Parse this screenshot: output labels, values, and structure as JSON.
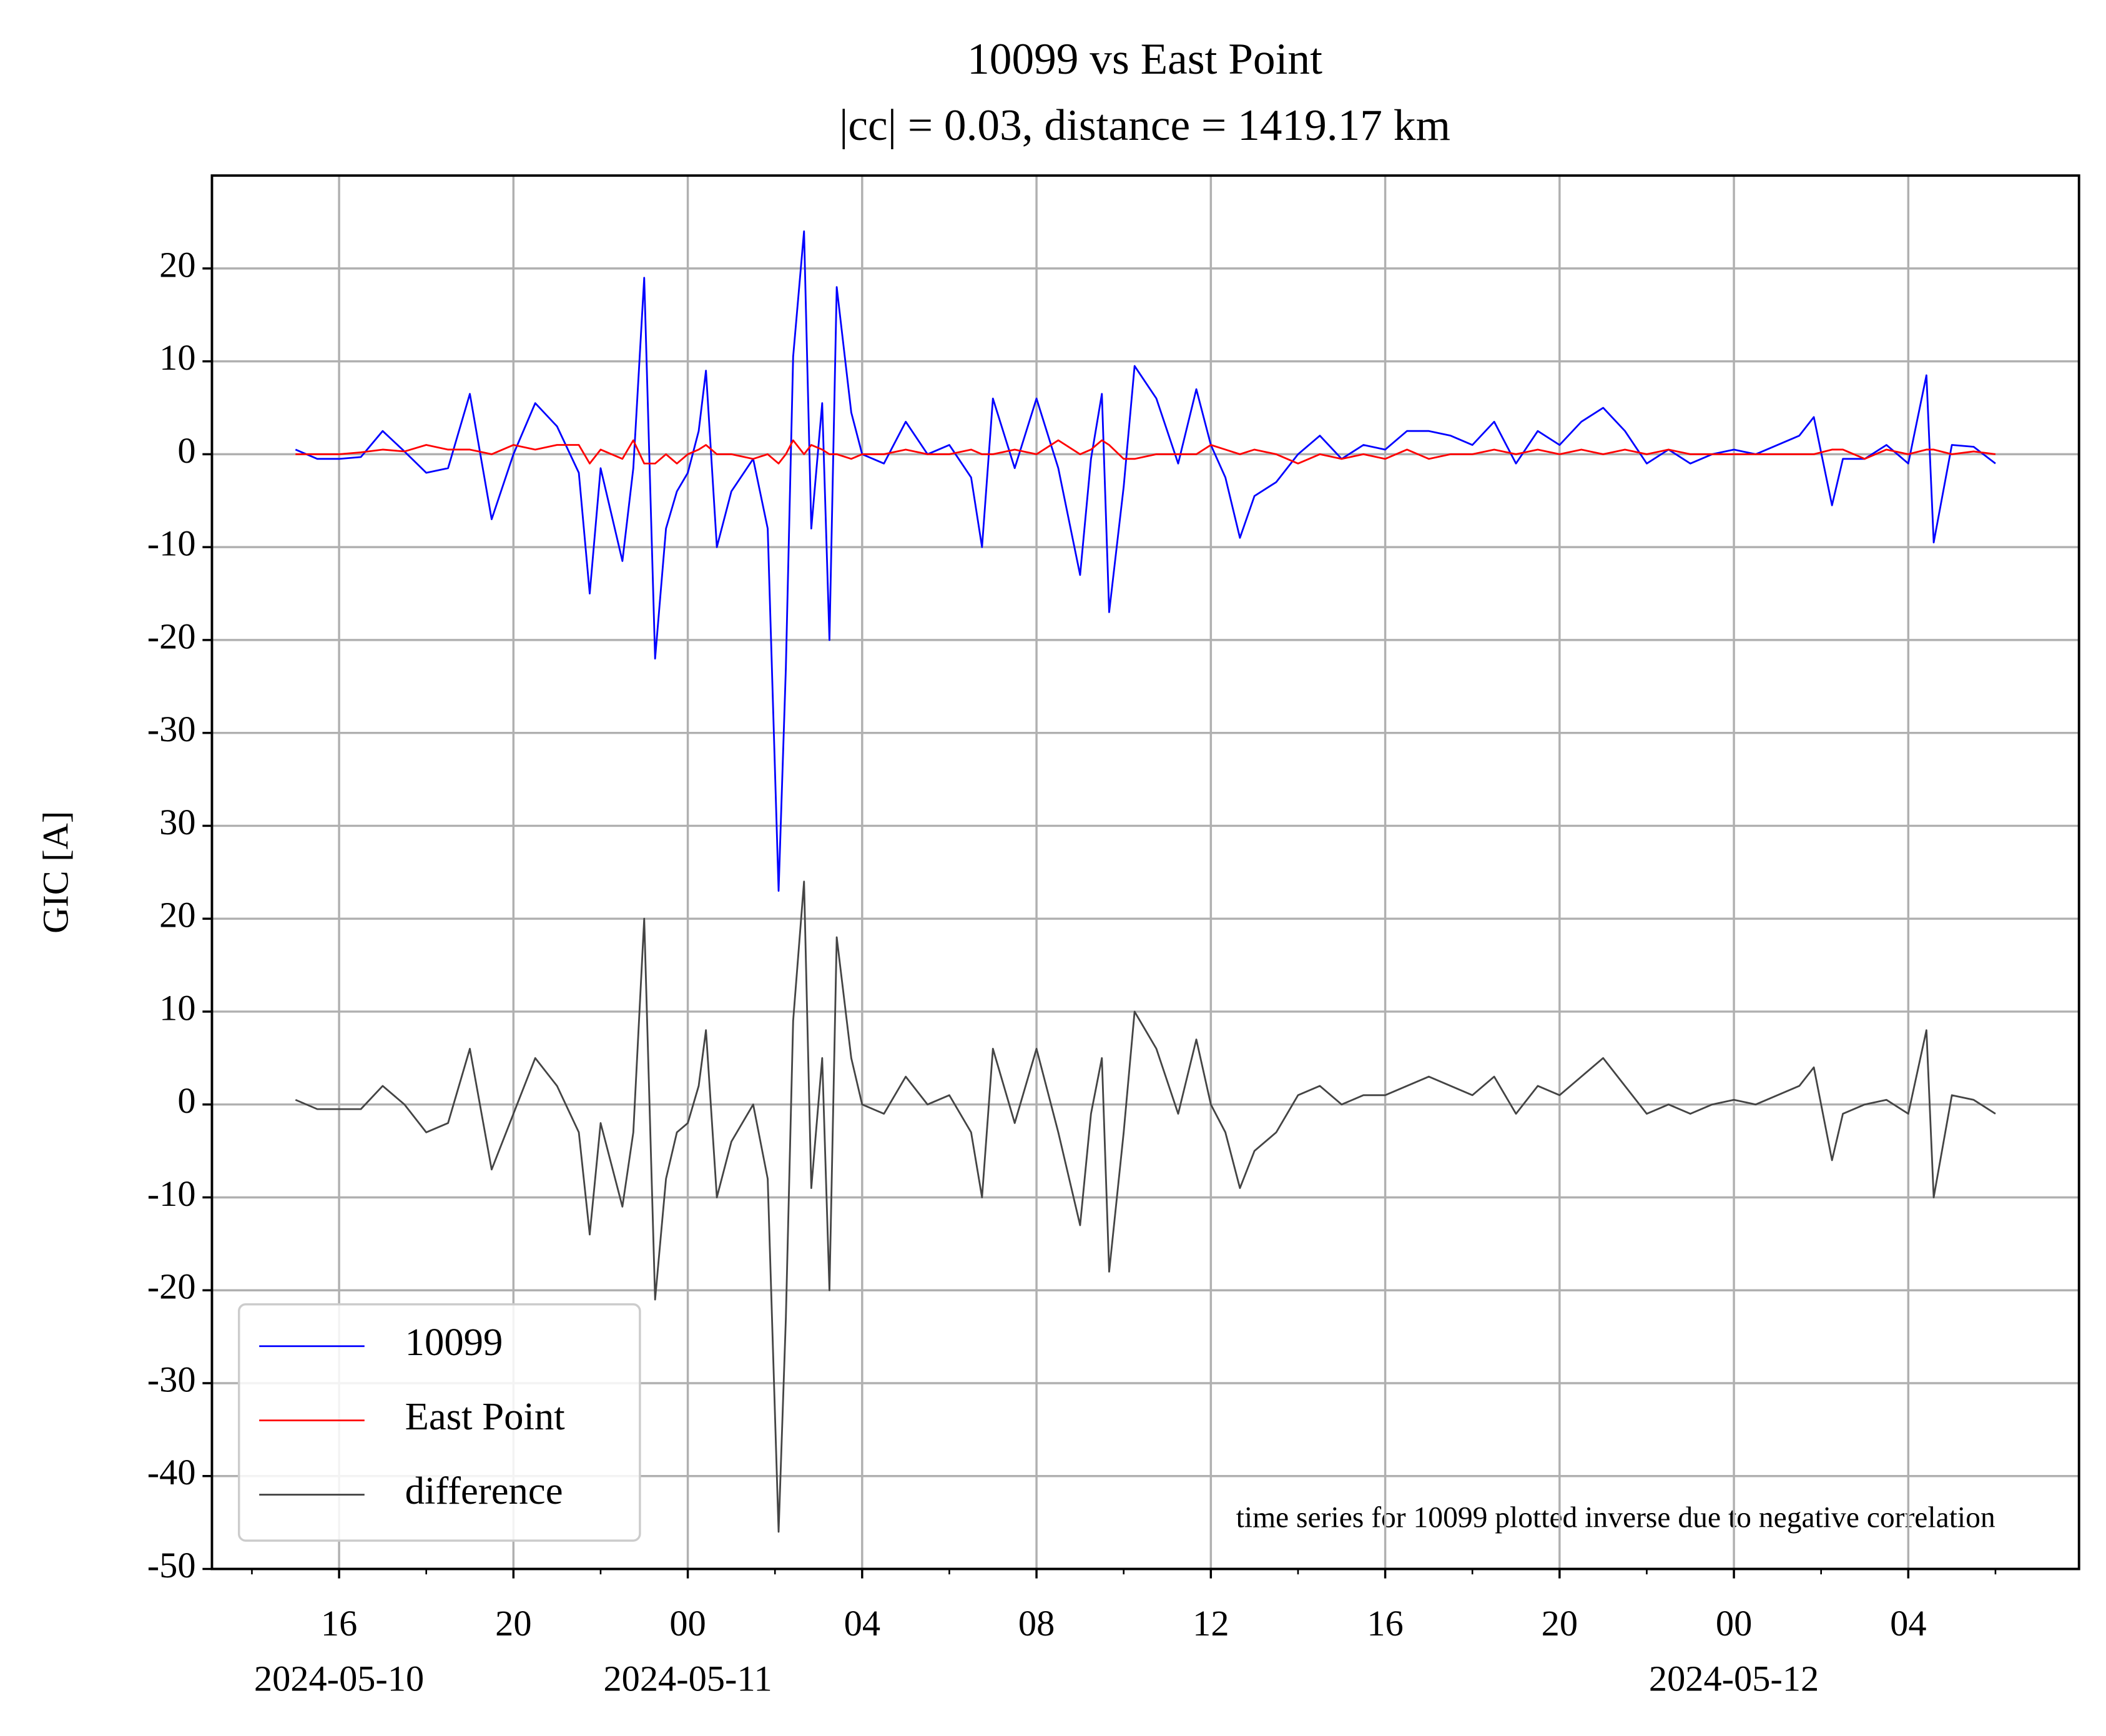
{
  "chart_data": {
    "type": "line",
    "title": "10099 vs East Point",
    "subtitle": "|cc| = 0.03, distance = 1419.17 km",
    "y_label": "GIC [A]",
    "annotation": "time series for 10099 plotted inverse due to negative correlation",
    "x": [
      "2024-05-10 15:00",
      "2024-05-10 15:30",
      "2024-05-10 16:00",
      "2024-05-10 16:30",
      "2024-05-10 17:00",
      "2024-05-10 17:30",
      "2024-05-10 18:00",
      "2024-05-10 18:30",
      "2024-05-10 19:00",
      "2024-05-10 19:30",
      "2024-05-10 20:00",
      "2024-05-10 20:30",
      "2024-05-10 21:00",
      "2024-05-10 21:30",
      "2024-05-10 21:45",
      "2024-05-10 22:00",
      "2024-05-10 22:30",
      "2024-05-10 22:45",
      "2024-05-10 23:00",
      "2024-05-10 23:15",
      "2024-05-10 23:30",
      "2024-05-10 23:45",
      "2024-05-11 00:00",
      "2024-05-11 00:15",
      "2024-05-11 00:25",
      "2024-05-11 00:40",
      "2024-05-11 01:00",
      "2024-05-11 01:30",
      "2024-05-11 01:50",
      "2024-05-11 02:05",
      "2024-05-11 02:15",
      "2024-05-11 02:25",
      "2024-05-11 02:40",
      "2024-05-11 02:50",
      "2024-05-11 03:05",
      "2024-05-11 03:15",
      "2024-05-11 03:25",
      "2024-05-11 03:45",
      "2024-05-11 04:00",
      "2024-05-11 04:30",
      "2024-05-11 05:00",
      "2024-05-11 05:30",
      "2024-05-11 06:00",
      "2024-05-11 06:30",
      "2024-05-11 06:45",
      "2024-05-11 07:00",
      "2024-05-11 07:30",
      "2024-05-11 08:00",
      "2024-05-11 08:30",
      "2024-05-11 09:00",
      "2024-05-11 09:15",
      "2024-05-11 09:30",
      "2024-05-11 09:40",
      "2024-05-11 10:00",
      "2024-05-11 10:15",
      "2024-05-11 10:45",
      "2024-05-11 11:15",
      "2024-05-11 11:40",
      "2024-05-11 12:00",
      "2024-05-11 12:20",
      "2024-05-11 12:40",
      "2024-05-11 13:00",
      "2024-05-11 13:30",
      "2024-05-11 14:00",
      "2024-05-11 14:30",
      "2024-05-11 15:00",
      "2024-05-11 15:30",
      "2024-05-11 16:00",
      "2024-05-11 16:30",
      "2024-05-11 17:00",
      "2024-05-11 17:30",
      "2024-05-11 18:00",
      "2024-05-11 18:30",
      "2024-05-11 19:00",
      "2024-05-11 19:30",
      "2024-05-11 20:00",
      "2024-05-11 20:30",
      "2024-05-11 21:00",
      "2024-05-11 21:30",
      "2024-05-11 22:00",
      "2024-05-11 22:30",
      "2024-05-11 23:00",
      "2024-05-11 23:30",
      "2024-05-12 00:00",
      "2024-05-12 00:30",
      "2024-05-12 01:00",
      "2024-05-12 01:30",
      "2024-05-12 01:50",
      "2024-05-12 02:15",
      "2024-05-12 02:30",
      "2024-05-12 03:00",
      "2024-05-12 03:30",
      "2024-05-12 04:00",
      "2024-05-12 04:25",
      "2024-05-12 04:35",
      "2024-05-12 05:00",
      "2024-05-12 05:30",
      "2024-05-12 06:00"
    ],
    "series": [
      {
        "name": "10099",
        "color": "#0000ff",
        "values": [
          70.5,
          69.5,
          69.5,
          69.7,
          72.5,
          70.3,
          68,
          68.5,
          76.5,
          63,
          70,
          75.5,
          73,
          68,
          55,
          68.5,
          58.5,
          68.5,
          89,
          48,
          62,
          66,
          68,
          72.5,
          79,
          60,
          66,
          69.5,
          62,
          23,
          47,
          80.5,
          94,
          62,
          75.5,
          50,
          88,
          74.5,
          70,
          69,
          73.5,
          70,
          71,
          67.5,
          60,
          76,
          68.5,
          76,
          68.5,
          57,
          69.5,
          76.5,
          53,
          66.5,
          79.5,
          76,
          69,
          77,
          71,
          67.5,
          61,
          65.5,
          67,
          70,
          72,
          69.5,
          71,
          70.5,
          72.5,
          72.5,
          72,
          71,
          73.5,
          69,
          72.5,
          71,
          73.5,
          75,
          72.5,
          69,
          70.5,
          69,
          70,
          70.5,
          70,
          71,
          72,
          74,
          64.5,
          69.5,
          69.5,
          71,
          69,
          78.5,
          60.5,
          71,
          70.8,
          69
        ]
      },
      {
        "name": "East Point",
        "color": "#ff0000",
        "values": [
          70,
          70,
          70,
          70.2,
          70.5,
          70.3,
          71,
          70.5,
          70.5,
          70,
          71,
          70.5,
          71,
          71,
          69,
          70.5,
          69.5,
          71.5,
          69,
          69,
          70,
          69,
          70,
          70.5,
          71,
          70,
          70,
          69.5,
          70,
          69,
          70,
          71.5,
          70,
          71,
          70.5,
          70,
          70,
          69.5,
          70,
          70,
          70.5,
          70,
          70,
          70.5,
          70,
          70,
          70.5,
          70,
          71.5,
          70,
          70.5,
          71.5,
          71,
          69.5,
          69.5,
          70,
          70,
          70,
          71,
          70.5,
          70,
          70.5,
          70,
          69,
          70,
          69.5,
          70,
          69.5,
          70.5,
          69.5,
          70,
          70,
          70.5,
          70,
          70.5,
          70,
          70.5,
          70,
          70.5,
          70,
          70.5,
          70,
          70,
          70,
          70,
          70,
          70,
          70,
          70.5,
          70.5,
          69.5,
          70.5,
          70,
          70.5,
          70.5,
          70,
          70.3,
          70
        ]
      },
      {
        "name": "difference",
        "color": "#444444",
        "values": [
          0.5,
          -0.5,
          -0.5,
          -0.5,
          2,
          0,
          -3,
          -2,
          6,
          -7,
          -1,
          5,
          2,
          -3,
          -14,
          -2,
          -11,
          -3,
          20,
          -21,
          -8,
          -3,
          -2,
          2,
          8,
          -10,
          -4,
          0,
          -8,
          -46,
          -23,
          9,
          24,
          -9,
          5,
          -20,
          18,
          5,
          0,
          -1,
          3,
          0,
          1,
          -3,
          -10,
          6,
          -2,
          6,
          -3,
          -13,
          -1,
          5,
          -18,
          -3,
          10,
          6,
          -1,
          7,
          0,
          -3,
          -9,
          -5,
          -3,
          1,
          2,
          0,
          1,
          1,
          2,
          3,
          2,
          1,
          3,
          -1,
          2,
          1,
          3,
          5,
          2,
          -1,
          0,
          -1,
          0,
          0.5,
          0,
          1,
          2,
          4,
          -6,
          -1,
          0,
          0.5,
          -1,
          8,
          -10,
          1,
          0.5,
          -1
        ]
      }
    ],
    "xlim": [
      "2024-05-10 13:05",
      "2024-05-12 07:55"
    ],
    "xticks": [
      {
        "value": "2024-05-10 16:00",
        "label": "16"
      },
      {
        "value": "2024-05-10 20:00",
        "label": "20"
      },
      {
        "value": "2024-05-11 00:00",
        "label": "00"
      },
      {
        "value": "2024-05-11 04:00",
        "label": "04"
      },
      {
        "value": "2024-05-11 08:00",
        "label": "08"
      },
      {
        "value": "2024-05-11 12:00",
        "label": "12"
      },
      {
        "value": "2024-05-11 16:00",
        "label": "16"
      },
      {
        "value": "2024-05-11 20:00",
        "label": "20"
      },
      {
        "value": "2024-05-12 00:00",
        "label": "00"
      },
      {
        "value": "2024-05-12 04:00",
        "label": "04"
      }
    ],
    "xdate_labels": [
      {
        "value": "2024-05-10 16:00",
        "label": "2024-05-10"
      },
      {
        "value": "2024-05-11 00:00",
        "label": "2024-05-11"
      },
      {
        "value": "2024-05-12 00:00",
        "label": "2024-05-12"
      }
    ],
    "xminor_ticks": [
      "2024-05-10 14:00",
      "2024-05-10 18:00",
      "2024-05-10 22:00",
      "2024-05-11 02:00",
      "2024-05-11 06:00",
      "2024-05-11 10:00",
      "2024-05-11 14:00",
      "2024-05-11 18:00",
      "2024-05-11 22:00",
      "2024-05-12 02:00",
      "2024-05-12 06:00"
    ],
    "ylim": [
      -50,
      100
    ],
    "yticks": [
      -50,
      -40,
      -30,
      -20,
      -10,
      0,
      10,
      20,
      30,
      {
        "value": 40,
        "label": "-30"
      },
      {
        "value": 50,
        "label": "-20"
      },
      {
        "value": 60,
        "label": "-10"
      },
      {
        "value": 70,
        "label": "0"
      },
      {
        "value": 80,
        "label": "10"
      },
      {
        "value": 90,
        "label": "20"
      }
    ],
    "grid": true,
    "legend": "lower left"
  }
}
